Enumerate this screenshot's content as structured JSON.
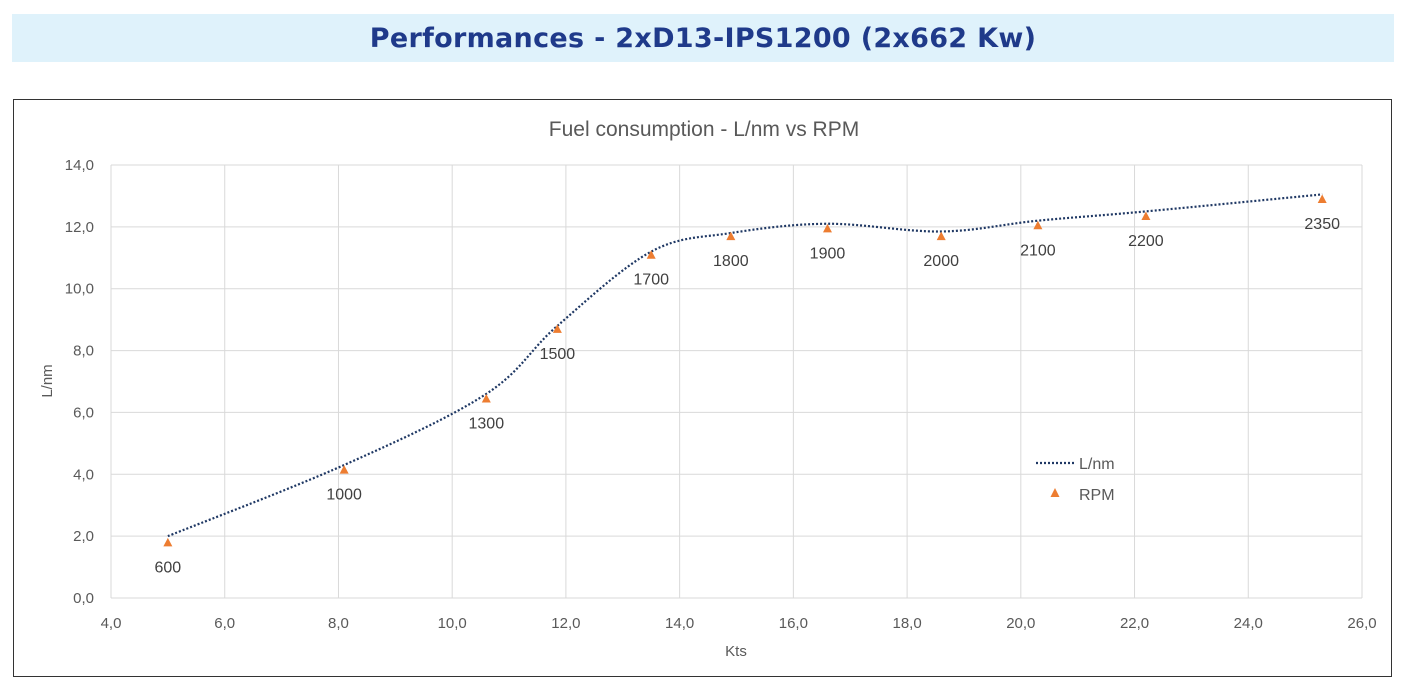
{
  "banner": {
    "title": "Performances - 2xD13-IPS1200 (2x662 Kw)"
  },
  "colors": {
    "banner_bg": "#dff2fb",
    "banner_text": "#1f3a8a",
    "line": "#1f3864",
    "marker": "#ed7d31",
    "grid": "#d9d9d9"
  },
  "chart_data": {
    "type": "scatter",
    "title": "Fuel consumption - L/nm vs RPM",
    "xlabel": "Kts",
    "ylabel": "L/nm",
    "xlim": [
      4.0,
      26.0
    ],
    "ylim": [
      0.0,
      14.0
    ],
    "x_ticks": [
      "4,0",
      "6,0",
      "8,0",
      "10,0",
      "12,0",
      "14,0",
      "16,0",
      "18,0",
      "20,0",
      "22,0",
      "24,0",
      "26,0"
    ],
    "y_ticks": [
      "0,0",
      "2,0",
      "4,0",
      "6,0",
      "8,0",
      "10,0",
      "12,0",
      "14,0"
    ],
    "grid": true,
    "legend_position": "right",
    "series": [
      {
        "name": "L/nm",
        "kind": "smooth-dotted-line",
        "x": [
          5.0,
          8.1,
          10.6,
          11.85,
          13.5,
          14.9,
          16.6,
          18.6,
          20.3,
          22.2,
          25.3
        ],
        "y": [
          2.0,
          4.3,
          6.6,
          8.8,
          11.2,
          11.8,
          12.1,
          11.85,
          12.2,
          12.5,
          13.05
        ]
      },
      {
        "name": "RPM",
        "kind": "triangle-markers",
        "x": [
          5.0,
          8.1,
          10.6,
          11.85,
          13.5,
          14.9,
          16.6,
          18.6,
          20.3,
          22.2,
          25.3
        ],
        "y": [
          1.8,
          4.15,
          6.45,
          8.7,
          11.1,
          11.7,
          11.95,
          11.7,
          12.05,
          12.35,
          12.9
        ],
        "labels": [
          "600",
          "1000",
          "1300",
          "1500",
          "1700",
          "1800",
          "1900",
          "2000",
          "2100",
          "2200",
          "2350"
        ],
        "label_pos": [
          "below",
          "below",
          "below",
          "below",
          "below",
          "below",
          "below",
          "below",
          "below",
          "below",
          "below"
        ]
      }
    ]
  }
}
